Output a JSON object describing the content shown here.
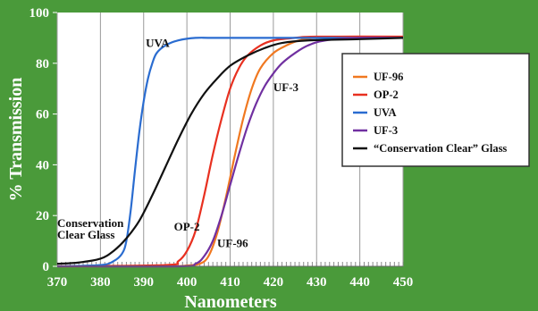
{
  "chart_data": {
    "type": "line",
    "title": "",
    "xlabel": "Nanometers",
    "ylabel": "% Transmission",
    "xlim": [
      370,
      450
    ],
    "ylim": [
      0,
      100
    ],
    "x_ticks": [
      370,
      380,
      390,
      400,
      410,
      420,
      430,
      440,
      450
    ],
    "y_ticks": [
      0,
      20,
      40,
      60,
      80,
      100
    ],
    "grid": "vertical",
    "legend_position": "right",
    "series": [
      {
        "name": "UF-96",
        "color": "#f07820",
        "points": [
          [
            370,
            0
          ],
          [
            395,
            0
          ],
          [
            400,
            0.3
          ],
          [
            403,
            1
          ],
          [
            405,
            4
          ],
          [
            407,
            13
          ],
          [
            409,
            27
          ],
          [
            411,
            43
          ],
          [
            413,
            58
          ],
          [
            415,
            70
          ],
          [
            417,
            78
          ],
          [
            420,
            84
          ],
          [
            423,
            87
          ],
          [
            426,
            89
          ],
          [
            430,
            90
          ],
          [
            440,
            90
          ],
          [
            450,
            90
          ]
        ]
      },
      {
        "name": "OP-2",
        "color": "#e83020",
        "points": [
          [
            370,
            0
          ],
          [
            395,
            0.5
          ],
          [
            398,
            2
          ],
          [
            400,
            6
          ],
          [
            402,
            14
          ],
          [
            404,
            28
          ],
          [
            406,
            44
          ],
          [
            408,
            58
          ],
          [
            410,
            70
          ],
          [
            412,
            78
          ],
          [
            414,
            83
          ],
          [
            417,
            87
          ],
          [
            420,
            89
          ],
          [
            425,
            90
          ],
          [
            430,
            90.5
          ],
          [
            450,
            90.5
          ]
        ]
      },
      {
        "name": "UVA",
        "color": "#2a6cd0",
        "points": [
          [
            370,
            0
          ],
          [
            380,
            0.5
          ],
          [
            383,
            2
          ],
          [
            385,
            5
          ],
          [
            386,
            10
          ],
          [
            387,
            22
          ],
          [
            388,
            38
          ],
          [
            389,
            53
          ],
          [
            390,
            65
          ],
          [
            391,
            74
          ],
          [
            392,
            80
          ],
          [
            393,
            84
          ],
          [
            395,
            87
          ],
          [
            398,
            89
          ],
          [
            402,
            90
          ],
          [
            410,
            90
          ],
          [
            450,
            90
          ]
        ]
      },
      {
        "name": "UF-3",
        "color": "#7030a0",
        "points": [
          [
            370,
            0
          ],
          [
            398,
            0
          ],
          [
            402,
            1
          ],
          [
            404,
            4
          ],
          [
            406,
            10
          ],
          [
            408,
            20
          ],
          [
            410,
            32
          ],
          [
            412,
            44
          ],
          [
            414,
            55
          ],
          [
            416,
            64
          ],
          [
            418,
            71
          ],
          [
            420,
            76
          ],
          [
            422,
            80
          ],
          [
            425,
            84
          ],
          [
            428,
            87
          ],
          [
            432,
            89
          ],
          [
            440,
            90
          ],
          [
            450,
            90
          ]
        ]
      },
      {
        "name": "“Conservation Clear” Glass",
        "color": "#111111",
        "points": [
          [
            370,
            1
          ],
          [
            375,
            1.5
          ],
          [
            380,
            3
          ],
          [
            383,
            6
          ],
          [
            386,
            11
          ],
          [
            389,
            18
          ],
          [
            392,
            28
          ],
          [
            395,
            39
          ],
          [
            398,
            50
          ],
          [
            401,
            60
          ],
          [
            404,
            68
          ],
          [
            407,
            74
          ],
          [
            410,
            79
          ],
          [
            414,
            83
          ],
          [
            418,
            86
          ],
          [
            422,
            88
          ],
          [
            428,
            89
          ],
          [
            440,
            89.5
          ],
          [
            450,
            90
          ]
        ]
      }
    ],
    "annotations": [
      {
        "text": "UVA",
        "x": 390.5,
        "y": 86.5
      },
      {
        "text": "UF-3",
        "x": 420,
        "y": 69
      },
      {
        "text": "Conservation",
        "x": 370,
        "y": 15.5
      },
      {
        "text": "Clear Glass",
        "x": 370,
        "y": 11
      },
      {
        "text": "OP-2",
        "x": 397,
        "y": 14
      },
      {
        "text": "UF-96",
        "x": 407,
        "y": 7.5
      }
    ]
  }
}
